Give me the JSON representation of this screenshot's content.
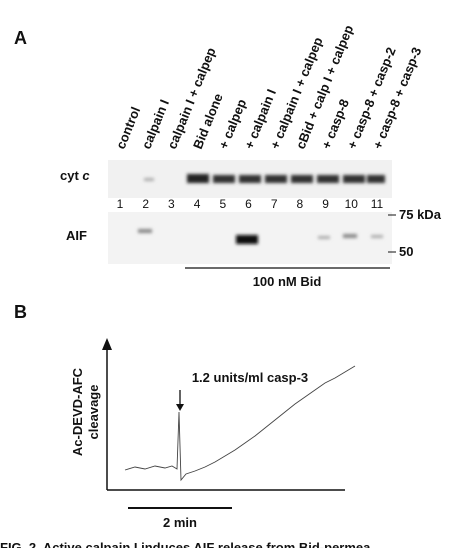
{
  "panel_a": {
    "label": "A",
    "lane_labels": [
      "control",
      "calpain I",
      "calpain I + calpep",
      "Bid alone",
      "+ calpep",
      "+ calpain I",
      "+ calpain I + calpep",
      "cBid + calp I + calpep",
      "+ casp-8",
      "+ casp-8 + casp-2",
      "+ casp-8 + casp-3"
    ],
    "lane_numbers": [
      "1",
      "2",
      "3",
      "4",
      "5",
      "6",
      "7",
      "8",
      "9",
      "10",
      "11"
    ],
    "row_labels": {
      "cyt": "cyt",
      "cyt_italic": "c",
      "aif": "AIF"
    },
    "markers": [
      "75 kDa",
      "50"
    ],
    "bid_bracket": "100 nM Bid"
  },
  "panel_b": {
    "label": "B",
    "y_label": [
      "Ac-DEVD-AFC",
      "cleavage"
    ],
    "annotation": "1.2 units/ml casp-3",
    "scale_bar": "2 min"
  },
  "caption": "FIG. 2. Active calpain I induces AIF release from Bid-permea"
}
